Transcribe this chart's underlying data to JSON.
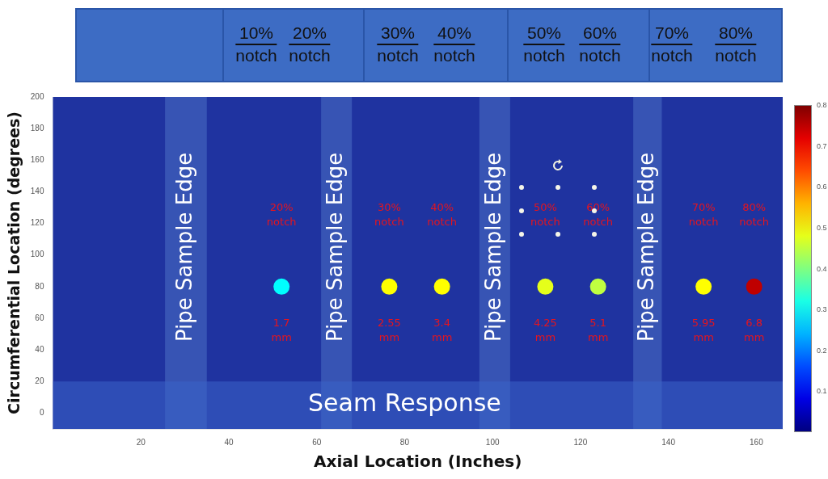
{
  "chart_data": {
    "type": "scatter",
    "xlabel": "Axial Location (Inches)",
    "ylabel": "Circumferential Location (degrees)",
    "x": [
      52,
      76.5,
      88.5,
      112,
      124,
      148,
      159.5
    ],
    "values": [
      80,
      80,
      80,
      80,
      80,
      80,
      80
    ],
    "cvalues": [
      0.3,
      0.5,
      0.5,
      0.48,
      0.45,
      0.5,
      0.75
    ],
    "clim": [
      0,
      0.8
    ],
    "cticks": [
      0.1,
      0.2,
      0.3,
      0.4,
      0.5,
      0.6,
      0.7,
      0.8
    ],
    "marker": "circle",
    "xlim": [
      0,
      166
    ],
    "xticks": [
      20,
      40,
      60,
      80,
      100,
      120,
      140,
      160
    ],
    "ylim": [
      -10,
      200
    ],
    "yticks": [
      0,
      20,
      40,
      60,
      80,
      100,
      120,
      140,
      160,
      180,
      200
    ],
    "grid": false,
    "legend": false,
    "bands": [
      {
        "axis": "x",
        "from": 25.5,
        "to": 35,
        "label": "Pipe Sample Edge",
        "color": "#4a6fc4"
      },
      {
        "axis": "x",
        "from": 61,
        "to": 68,
        "label": "Pipe Sample Edge",
        "color": "#4a6fc4"
      },
      {
        "axis": "x",
        "from": 97,
        "to": 104,
        "label": "Pipe Sample Edge",
        "color": "#4a6fc4"
      },
      {
        "axis": "x",
        "from": 132,
        "to": 138.5,
        "label": "Pipe Sample Edge",
        "color": "#4a6fc4"
      },
      {
        "axis": "y",
        "from": -10,
        "to": 20,
        "label": "Seam Response",
        "color": "#3a62c8"
      }
    ],
    "annotations": [
      "10% notch",
      "20% notch",
      "30% notch",
      "40% notch",
      "50% notch",
      "60% notch",
      "70% notch",
      "80% notch",
      "20% notch",
      "30% notch",
      "40% notch",
      "50% notch",
      "60% notch",
      "70% notch",
      "80% notch",
      "1.7 mm",
      "2.55 mm",
      "3.4 mm",
      "4.25 mm",
      "5.1 mm",
      "5.95 mm",
      "6.8 mm"
    ]
  }
}
